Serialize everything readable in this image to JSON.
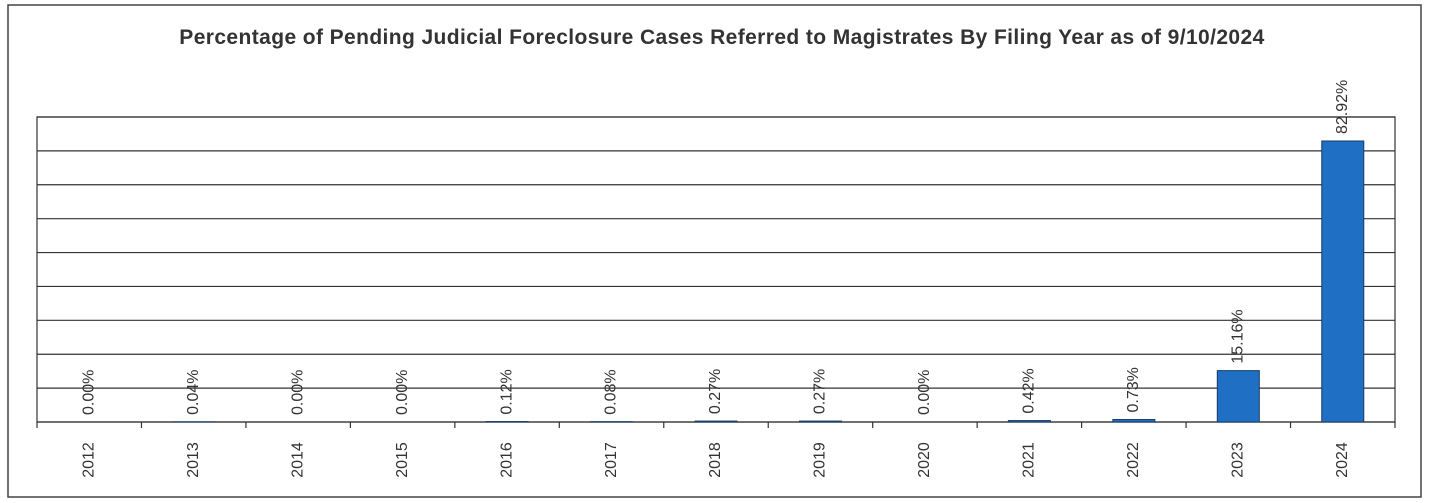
{
  "chart_data": {
    "type": "bar",
    "title": "Percentage of Pending Judicial Foreclosure Cases Referred to Magistrates By Filing Year as of 9/10/2024",
    "categories": [
      "2012",
      "2013",
      "2014",
      "2015",
      "2016",
      "2017",
      "2018",
      "2019",
      "2020",
      "2021",
      "2022",
      "2023",
      "2024"
    ],
    "values": [
      0.0,
      0.04,
      0.0,
      0.0,
      0.12,
      0.08,
      0.27,
      0.27,
      0.0,
      0.42,
      0.73,
      15.16,
      82.92
    ],
    "value_labels": [
      "0.00%",
      "0.04%",
      "0.00%",
      "0.00%",
      "0.12%",
      "0.08%",
      "0.27%",
      "0.27%",
      "0.00%",
      "0.42%",
      "0.73%",
      "15.16%",
      "82.92%"
    ],
    "color": "#1f6fc5",
    "ylim": [
      0,
      90
    ],
    "yticks": [
      0,
      10,
      20,
      30,
      40,
      50,
      60,
      70,
      80,
      90
    ],
    "grid": true
  }
}
